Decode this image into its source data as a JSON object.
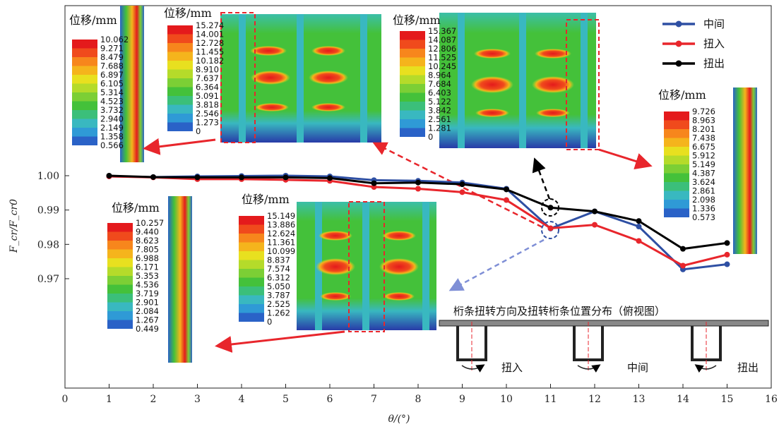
{
  "chart_data": {
    "type": "line",
    "xlabel": "θ/(°)",
    "ylabel": "F_cr/F_cr0",
    "xlim": [
      0,
      16
    ],
    "ylim": [
      0.96,
      1.005
    ],
    "xticks": [
      "0",
      "1",
      "2",
      "3",
      "4",
      "5",
      "6",
      "7",
      "8",
      "9",
      "10",
      "11",
      "12",
      "13",
      "14",
      "15",
      "16"
    ],
    "yticks": [
      "1.00",
      "0.99",
      "0.98",
      "0.97"
    ],
    "legend_position": "top-right",
    "series": [
      {
        "name": "中间",
        "color": "#2e4fa3",
        "x": [
          1,
          2,
          3,
          4,
          5,
          6,
          7,
          8,
          9,
          10,
          11,
          12,
          13,
          14,
          15
        ],
        "y": [
          0.9998,
          0.9996,
          0.9998,
          0.9999,
          1.0,
          0.9998,
          0.9987,
          0.9985,
          0.998,
          0.9962,
          0.9846,
          0.9896,
          0.9852,
          0.9727,
          0.9742
        ]
      },
      {
        "name": "扭入",
        "color": "#e8262c",
        "x": [
          1,
          2,
          3,
          4,
          5,
          6,
          7,
          8,
          9,
          10,
          11,
          12,
          13,
          14,
          15
        ],
        "y": [
          0.9998,
          0.9995,
          0.999,
          0.999,
          0.9988,
          0.9985,
          0.9967,
          0.9962,
          0.9952,
          0.9929,
          0.9847,
          0.9857,
          0.981,
          0.9738,
          0.977
        ]
      },
      {
        "name": "扭出",
        "color": "#000000",
        "x": [
          1,
          2,
          3,
          4,
          5,
          6,
          7,
          8,
          9,
          10,
          11,
          12,
          13,
          14,
          15
        ],
        "y": [
          1.0,
          0.9996,
          0.9995,
          0.9995,
          0.9995,
          0.9993,
          0.9978,
          0.998,
          0.9975,
          0.996,
          0.9907,
          0.9896,
          0.9868,
          0.9787,
          0.9804
        ]
      }
    ]
  },
  "colorbars": [
    {
      "title": "位移/mm",
      "values": [
        "10.062",
        "9.271",
        "8.479",
        "7.688",
        "6.897",
        "6.105",
        "5.314",
        "4.523",
        "3.732",
        "2.940",
        "2.149",
        "1.358",
        "0.566"
      ]
    },
    {
      "title": "位移/mm",
      "values": [
        "15.274",
        "14.001",
        "12.728",
        "11.455",
        "10.182",
        "8.910",
        "7.637",
        "6.364",
        "5.091",
        "3.818",
        "2.546",
        "1.273",
        "0"
      ]
    },
    {
      "title": "位移/mm",
      "values": [
        "15.367",
        "14.087",
        "12.806",
        "11.525",
        "10.245",
        "8.964",
        "7.684",
        "6.403",
        "5.122",
        "3.842",
        "2.561",
        "1.281",
        "0"
      ]
    },
    {
      "title": "位移/mm",
      "values": [
        "9.726",
        "8.963",
        "8.201",
        "7.438",
        "6.675",
        "5.912",
        "5.149",
        "4.387",
        "3.624",
        "2.861",
        "2.098",
        "1.336",
        "0.573"
      ]
    },
    {
      "title": "位移/mm",
      "values": [
        "10.257",
        "9.440",
        "8.623",
        "7.805",
        "6.988",
        "6.171",
        "5.353",
        "4.536",
        "3.719",
        "2.901",
        "2.084",
        "1.267",
        "0.449"
      ]
    },
    {
      "title": "位移/mm",
      "values": [
        "15.149",
        "13.886",
        "12.624",
        "11.361",
        "10.099",
        "8.837",
        "7.574",
        "6.312",
        "5.050",
        "3.787",
        "2.525",
        "1.262",
        "0"
      ]
    }
  ],
  "palette": [
    "#e41a1c",
    "#f04a1c",
    "#f7861c",
    "#f5b41c",
    "#e8e01f",
    "#b5db2a",
    "#7ccf35",
    "#44c13a",
    "#3bbf7a",
    "#39b8c0",
    "#2f9ad6",
    "#2a62c7",
    "#283ba8"
  ],
  "diagram": {
    "title": "桁条扭转方向及扭转桁条位置分布（俯视图）",
    "labels": [
      "扭入",
      "中间",
      "扭出"
    ]
  }
}
